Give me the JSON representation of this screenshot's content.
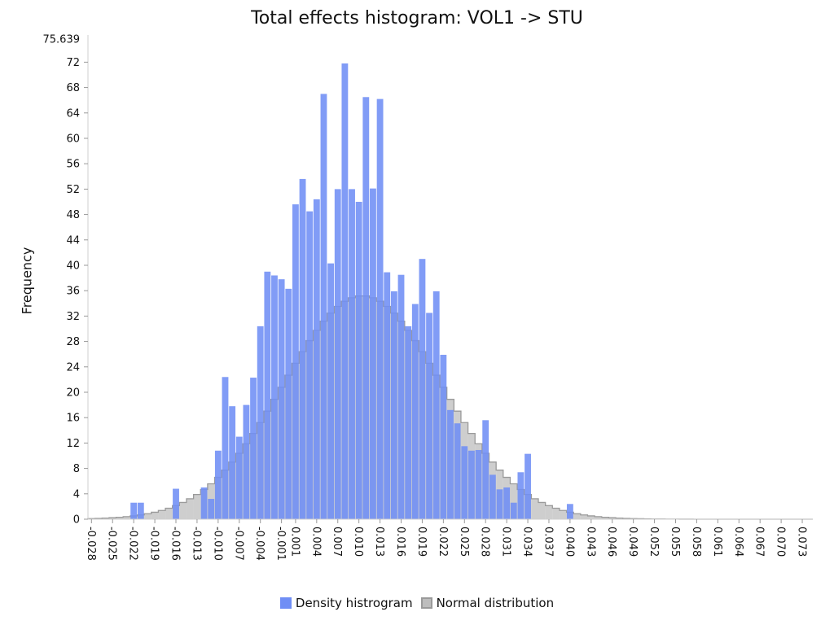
{
  "chart_data": {
    "type": "bar",
    "title": "Total effects histogram: VOL1 -> STU",
    "ylabel": "Frequency",
    "xlabel": "",
    "ylim": [
      0,
      75.639
    ],
    "y_max_label": "75.639",
    "y_ticks": [
      0,
      4,
      8,
      12,
      16,
      20,
      24,
      28,
      32,
      36,
      40,
      44,
      48,
      52,
      56,
      60,
      64,
      68,
      72
    ],
    "x_range": [
      -0.0285,
      0.0745
    ],
    "x_tick_labels": [
      "-0.028",
      "-0.025",
      "-0.022",
      "-0.019",
      "-0.016",
      "-0.013",
      "-0.010",
      "-0.007",
      "-0.004",
      "-0.001",
      "0.001",
      "0.004",
      "0.007",
      "0.010",
      "0.013",
      "0.016",
      "0.019",
      "0.022",
      "0.025",
      "0.028",
      "0.031",
      "0.034",
      "0.037",
      "0.040",
      "0.043",
      "0.046",
      "0.049",
      "0.052",
      "0.055",
      "0.058",
      "0.061",
      "0.064",
      "0.067",
      "0.070",
      "0.073"
    ],
    "bin_width": 0.001,
    "series": [
      {
        "name": "Density histrogram",
        "color": "#6f8ef5",
        "bin_start": -0.0225,
        "values": [
          2.6,
          2.6,
          0,
          0,
          0,
          0,
          4.8,
          0,
          0,
          0,
          5,
          3.2,
          10.8,
          22.4,
          17.8,
          13,
          18,
          22.3,
          30.4,
          39,
          38.4,
          37.8,
          36.3,
          49.6,
          53.6,
          48.5,
          50.4,
          67,
          40.3,
          52,
          71.8,
          52,
          50,
          66.5,
          52.1,
          66.2,
          38.9,
          35.9,
          38.5,
          30.4,
          33.9,
          41,
          32.5,
          35.9,
          25.9,
          17.2,
          15.1,
          11.5,
          10.8,
          10.9,
          15.6,
          7,
          4.7,
          5,
          2.6,
          7.4,
          10.3,
          0,
          0,
          0,
          0,
          0,
          2.4
        ],
        "fill_opacity": 0.88
      },
      {
        "name": "Normal distribution",
        "color": "#bdbdbd",
        "mean": 0.0105,
        "std": 0.0112,
        "peak": 35.2,
        "bin_start": -0.0285,
        "num_bins": 103,
        "fill_opacity": 0.75
      }
    ]
  },
  "legend": {
    "hist_label": "Density histrogram",
    "normal_label": "Normal distribution"
  },
  "colors": {
    "hist_fill": "#6f8ef5",
    "normal_fill": "#bdbdbd",
    "overlap_fill": "#5b6fc8"
  }
}
